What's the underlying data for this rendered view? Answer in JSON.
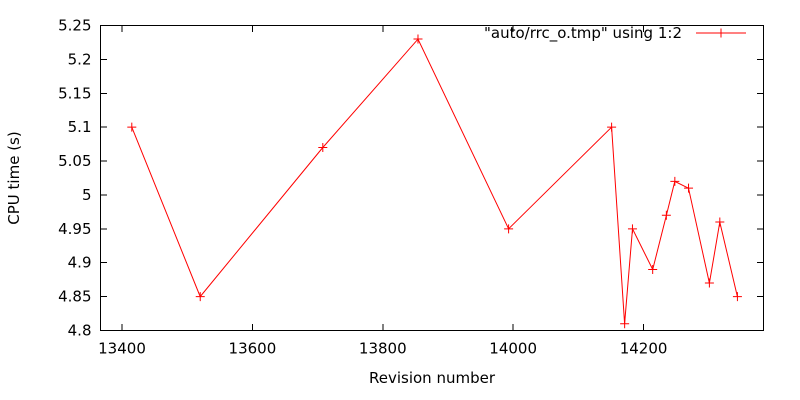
{
  "chart_data": {
    "type": "line",
    "title": "",
    "xlabel": "Revision number",
    "ylabel": "CPU time (s)",
    "xlim": [
      13367,
      14384
    ],
    "ylim": [
      4.8,
      5.25
    ],
    "xticks": [
      13400,
      13600,
      13800,
      14000,
      14200
    ],
    "xtick_labels": [
      "13400",
      "13600",
      "13800",
      "14000",
      "14200"
    ],
    "yticks": [
      4.8,
      4.85,
      4.9,
      4.95,
      5.0,
      5.05,
      5.1,
      5.15,
      5.2,
      5.25
    ],
    "ytick_labels": [
      "4.8",
      "4.85",
      "4.9",
      "4.95",
      "5",
      "5.05",
      "5.1",
      "5.15",
      "5.2",
      "5.25"
    ],
    "grid": false,
    "legend_position": "top-right-inside",
    "series": [
      {
        "name": "\"auto/rrc_o.tmp\" using 1:2",
        "style": "linespoints",
        "marker": "plus",
        "color": "#ff0000",
        "points": [
          [
            13415,
            5.1
          ],
          [
            13520,
            4.85
          ],
          [
            13708,
            5.07
          ],
          [
            13854,
            5.23
          ],
          [
            13993,
            4.95
          ],
          [
            14151,
            5.1
          ],
          [
            14171,
            4.81
          ],
          [
            14183,
            4.95
          ],
          [
            14214,
            4.89
          ],
          [
            14235,
            4.97
          ],
          [
            14248,
            5.02
          ],
          [
            14269,
            5.01
          ],
          [
            14301,
            4.87
          ],
          [
            14317,
            4.96
          ],
          [
            14344,
            4.85
          ]
        ]
      }
    ]
  },
  "colors": {
    "series": "#ff0000",
    "axis": "#000000",
    "background": "#ffffff"
  }
}
